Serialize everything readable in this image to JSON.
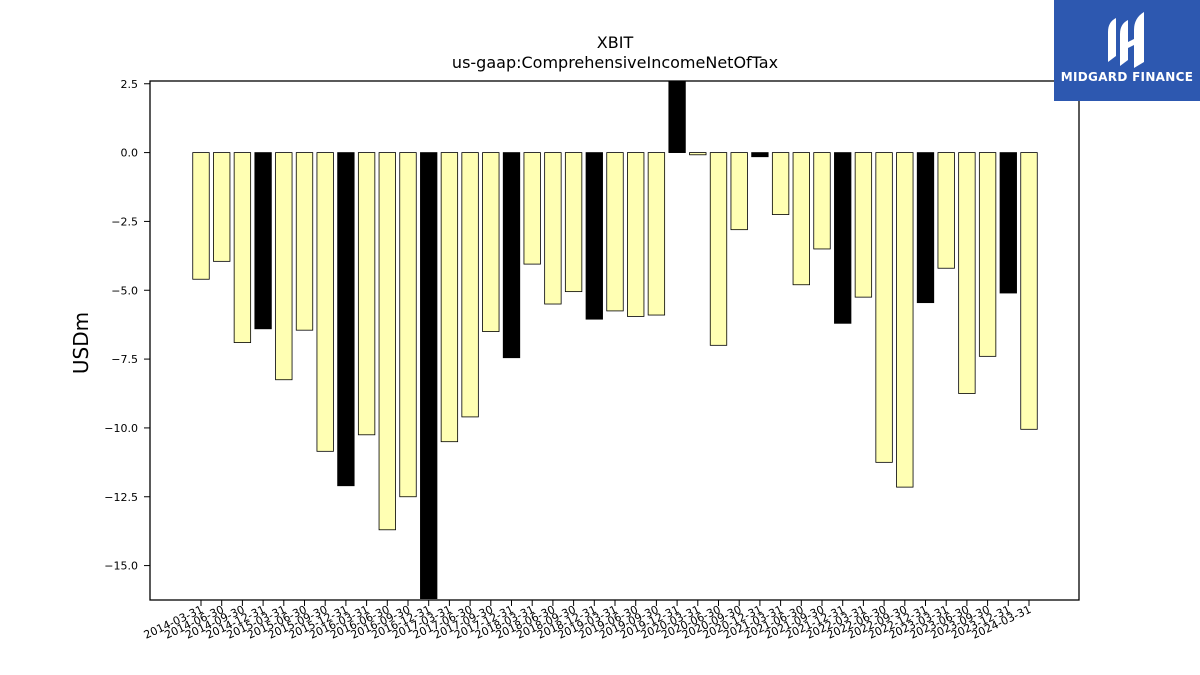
{
  "chart_data": {
    "type": "bar",
    "title": "XBIT",
    "subtitle": "us-gaap:ComprehensiveIncomeNetOfTax",
    "xlabel": "",
    "ylabel": "USDm",
    "ylim": [
      -16.25,
      2.6
    ],
    "yticks": [
      2.5,
      0.0,
      -2.5,
      -5.0,
      -7.5,
      -10.0,
      -12.5,
      -15.0
    ],
    "ytick_labels": [
      "2.5",
      "0.0",
      "−2.5",
      "−5.0",
      "−7.5",
      "−10.0",
      "−12.5",
      "−15.0"
    ],
    "grid": false,
    "categories": [
      "2014-03-31",
      "2014-06-30",
      "2014-09-30",
      "2014-12-31",
      "2015-03-31",
      "2015-06-30",
      "2015-09-30",
      "2015-12-31",
      "2016-03-31",
      "2016-06-30",
      "2016-09-30",
      "2016-12-31",
      "2017-03-31",
      "2017-06-30",
      "2017-09-30",
      "2017-12-31",
      "2018-03-31",
      "2018-06-30",
      "2018-09-30",
      "2018-12-31",
      "2019-03-31",
      "2019-06-30",
      "2019-09-30",
      "2019-12-31",
      "2020-03-31",
      "2020-06-30",
      "2020-09-30",
      "2020-12-31",
      "2021-03-31",
      "2021-06-30",
      "2021-09-30",
      "2021-12-31",
      "2022-03-31",
      "2022-06-30",
      "2022-09-30",
      "2022-12-31",
      "2023-03-31",
      "2023-06-30",
      "2023-09-30",
      "2023-12-31",
      "2024-03-31"
    ],
    "values": [
      -4.6,
      -3.95,
      -6.9,
      -6.4,
      -8.25,
      -6.45,
      -10.85,
      -12.1,
      -10.25,
      -13.7,
      -12.5,
      -16.2,
      -10.5,
      -9.6,
      -6.5,
      -7.45,
      -4.05,
      -5.5,
      -5.05,
      -6.05,
      -5.75,
      -5.95,
      -5.9,
      2.65,
      -0.08,
      -7.0,
      -2.8,
      -0.15,
      -2.25,
      -4.8,
      -3.5,
      -6.2,
      -5.25,
      -11.25,
      -12.15,
      -5.45,
      -4.2,
      -8.75,
      -7.4,
      -5.1,
      -10.05
    ],
    "highlight": [
      false,
      false,
      false,
      true,
      false,
      false,
      false,
      true,
      false,
      false,
      false,
      true,
      false,
      false,
      false,
      true,
      false,
      false,
      false,
      true,
      false,
      false,
      false,
      true,
      false,
      false,
      false,
      true,
      false,
      false,
      false,
      true,
      false,
      false,
      false,
      true,
      false,
      false,
      false,
      true,
      false
    ],
    "colors": {
      "normal": "#ffffb3",
      "highlight": "#000000",
      "edge": "#000000"
    }
  },
  "logo": {
    "text": "MIDGARD FINANCE",
    "bg": "#2d58b0"
  }
}
